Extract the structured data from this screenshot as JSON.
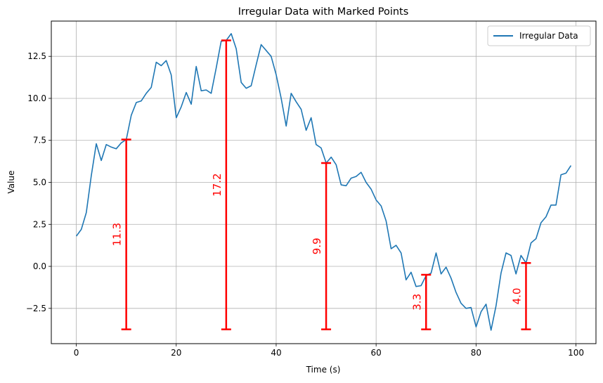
{
  "chart_data": {
    "type": "line",
    "title": "Irregular Data with Marked Points",
    "xlabel": "Time (s)",
    "ylabel": "Value",
    "xlim": [
      -5,
      104
    ],
    "ylim": [
      -4.6,
      14.6
    ],
    "x_ticks": [
      0,
      20,
      40,
      60,
      80,
      100
    ],
    "x_tick_labels": [
      "0",
      "20",
      "40",
      "60",
      "80",
      "100"
    ],
    "y_ticks": [
      -2.5,
      0.0,
      2.5,
      5.0,
      7.5,
      10.0,
      12.5
    ],
    "y_tick_labels": [
      "−2.5",
      "0.0",
      "2.5",
      "5.0",
      "7.5",
      "10.0",
      "12.5"
    ],
    "grid": true,
    "legend": {
      "position": "top-right",
      "entries": [
        "Irregular Data"
      ]
    },
    "series": [
      {
        "name": "Irregular Data",
        "color": "#1f77b4",
        "x": [
          0,
          1,
          2,
          3,
          4,
          5,
          6,
          7,
          8,
          9,
          10,
          11,
          12,
          13,
          14,
          15,
          16,
          17,
          18,
          19,
          20,
          21,
          22,
          23,
          24,
          25,
          26,
          27,
          28,
          29,
          30,
          31,
          32,
          33,
          34,
          35,
          36,
          37,
          38,
          39,
          40,
          41,
          42,
          43,
          44,
          45,
          46,
          47,
          48,
          49,
          50,
          51,
          52,
          53,
          54,
          55,
          56,
          57,
          58,
          59,
          60,
          61,
          62,
          63,
          64,
          65,
          66,
          67,
          68,
          69,
          70,
          71,
          72,
          73,
          74,
          75,
          76,
          77,
          78,
          79,
          80,
          81,
          82,
          83,
          84,
          85,
          86,
          87,
          88,
          89,
          90,
          91,
          92,
          93,
          94,
          95,
          96,
          97,
          98,
          99
        ],
        "y": [
          1.8,
          2.2,
          3.2,
          5.4,
          7.3,
          6.3,
          7.25,
          7.1,
          7.0,
          7.35,
          7.55,
          9.0,
          9.75,
          9.85,
          10.3,
          10.65,
          12.15,
          11.95,
          12.25,
          11.4,
          8.85,
          9.5,
          10.35,
          9.65,
          11.9,
          10.45,
          10.5,
          10.3,
          11.8,
          13.4,
          13.45,
          13.85,
          12.95,
          10.95,
          10.6,
          10.75,
          12.0,
          13.2,
          12.85,
          12.5,
          11.4,
          10.0,
          8.35,
          10.3,
          9.8,
          9.35,
          8.1,
          8.85,
          7.25,
          7.05,
          6.15,
          6.5,
          6.05,
          4.85,
          4.8,
          5.25,
          5.35,
          5.6,
          5.0,
          4.6,
          3.95,
          3.6,
          2.7,
          1.05,
          1.25,
          0.8,
          -0.8,
          -0.35,
          -1.2,
          -1.15,
          -0.55,
          -0.4,
          0.8,
          -0.45,
          -0.05,
          -0.7,
          -1.55,
          -2.2,
          -2.5,
          -2.45,
          -3.6,
          -2.7,
          -2.25,
          -3.8,
          -2.35,
          -0.4,
          0.8,
          0.65,
          -0.45,
          0.65,
          0.2,
          1.4,
          1.65,
          2.6,
          2.95,
          3.65,
          3.65,
          5.45,
          5.55,
          6.0
        ]
      }
    ],
    "markers": {
      "color": "#ff0000",
      "baseline": -3.75,
      "points": [
        {
          "x": 10,
          "top": 7.55,
          "label": "11.3"
        },
        {
          "x": 30,
          "top": 13.45,
          "label": "17.2"
        },
        {
          "x": 50,
          "top": 6.15,
          "label": "9.9"
        },
        {
          "x": 70,
          "top": -0.5,
          "label": "3.3"
        },
        {
          "x": 90,
          "top": 0.2,
          "label": "4.0"
        }
      ]
    }
  }
}
